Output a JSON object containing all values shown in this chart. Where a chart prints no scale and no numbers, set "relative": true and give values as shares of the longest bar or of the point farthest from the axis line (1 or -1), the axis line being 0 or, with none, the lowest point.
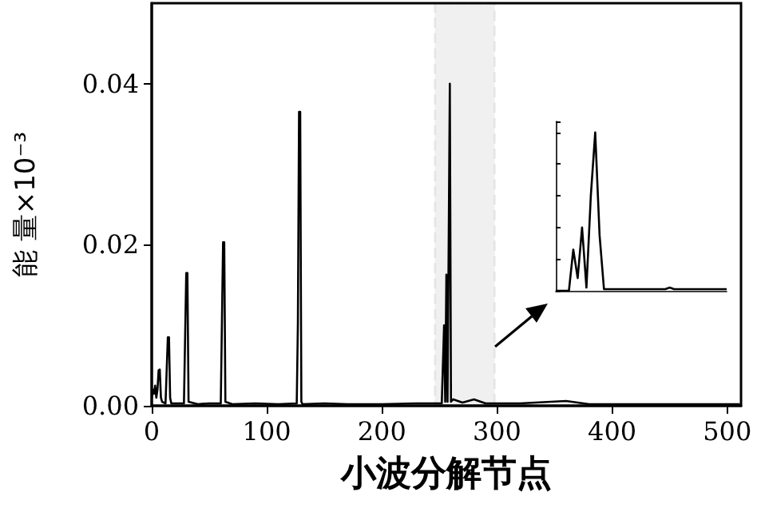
{
  "chart_data": [
    {
      "type": "line",
      "bands": [
        {
          "axis": "x",
          "from": 246,
          "to": 298,
          "color": "#000000"
        }
      ],
      "xlabel": "小波分解节点",
      "ylabel": "能 量×10⁻³",
      "xlim": [
        0,
        512
      ],
      "xticks": [
        0,
        100,
        200,
        300,
        400,
        500
      ],
      "ylim": [
        0,
        0.05
      ],
      "yticks": [
        {
          "value": 0,
          "label": "0.00"
        },
        {
          "value": 0.02,
          "label": "0.02"
        },
        {
          "value": 0.04,
          "label": "0.04"
        }
      ],
      "series": [
        {
          "color": "#000000",
          "x": [
            0,
            1,
            2,
            3,
            4,
            5,
            6,
            7,
            8,
            9,
            12,
            14,
            15,
            16,
            17,
            28,
            30,
            31,
            32,
            40,
            50,
            60,
            62,
            63,
            64,
            70,
            90,
            110,
            126,
            127,
            128,
            129,
            130,
            131,
            150,
            170,
            200,
            230,
            252,
            254,
            255,
            256,
            257,
            258,
            259,
            260,
            262,
            270,
            280,
            290,
            320,
            360,
            380,
            420,
            460,
            500,
            511
          ],
          "values": [
            0.001,
            0.002,
            0.0015,
            0.0025,
            0.001,
            0.002,
            0.0044,
            0.0045,
            0.001,
            0.0005,
            0.0003,
            0.0085,
            0.0085,
            0.001,
            0.0003,
            0.0003,
            0.0165,
            0.0165,
            0.0005,
            0.0002,
            0.0003,
            0.0003,
            0.0203,
            0.0203,
            0.0005,
            0.0002,
            0.0003,
            0.0002,
            0.0003,
            0.0103,
            0.0365,
            0.0365,
            0.0005,
            0.0002,
            0.0003,
            0.0002,
            0.0002,
            0.0003,
            0.0003,
            0.01,
            0.0005,
            0.0163,
            0.0005,
            0.02,
            0.04,
            0.0005,
            0.0008,
            0.0004,
            0.0008,
            0.0003,
            0.0003,
            0.0006,
            0.0002,
            0.0002,
            0.0002,
            0.0002,
            0.0002
          ]
        }
      ]
    },
    {
      "type": "line",
      "relative": true,
      "categories": [
        null,
        null,
        null,
        null,
        null,
        null,
        null,
        null,
        null,
        null,
        null,
        null,
        null,
        null,
        null,
        null,
        null,
        null,
        null,
        null,
        null,
        null,
        null,
        null,
        null,
        null,
        null,
        null,
        null,
        null,
        null,
        null,
        null,
        null,
        null,
        null,
        null,
        null,
        null,
        null
      ],
      "series": [
        {
          "color": "#000000",
          "values": [
            0,
            0,
            0,
            0,
            0.26,
            0.08,
            0.4,
            0.02,
            0.6,
            1.0,
            0.35,
            0.01,
            0.01,
            0.01,
            0.01,
            0.01,
            0.01,
            0.01,
            0.01,
            0.01,
            0.01,
            0.01,
            0.01,
            0.01,
            0.01,
            0.01,
            0.02,
            0.01,
            0.01,
            0.01,
            0.01,
            0.01,
            0.01,
            0.01,
            0.01,
            0.01,
            0.01,
            0.01,
            0.01,
            0.01
          ]
        }
      ]
    }
  ]
}
